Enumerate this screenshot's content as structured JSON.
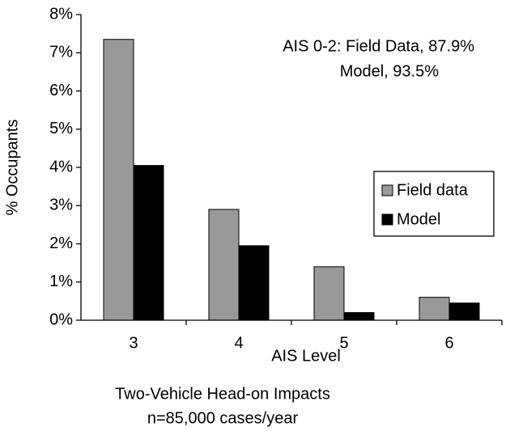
{
  "chart_data": {
    "type": "bar",
    "x_label": "AIS Level",
    "y_label": "% Occupants",
    "subtitle_lines": [
      "Two-Vehicle Head-on Impacts",
      "n=85,000 cases/year"
    ],
    "annotations": [
      "AIS 0-2: Field Data, 87.9%",
      "Model, 93.5%"
    ],
    "categories": [
      "3",
      "4",
      "5",
      "6"
    ],
    "series": [
      {
        "name": "Field data",
        "color": "#999999",
        "values": [
          7.35,
          2.9,
          1.4,
          0.6
        ]
      },
      {
        "name": "Model",
        "color": "#000000",
        "values": [
          4.05,
          1.95,
          0.2,
          0.45
        ]
      }
    ],
    "ylim": [
      0,
      8
    ],
    "yticks": [
      {
        "value": 0,
        "label": "0%"
      },
      {
        "value": 1,
        "label": "1%"
      },
      {
        "value": 2,
        "label": "2%"
      },
      {
        "value": 3,
        "label": "3%"
      },
      {
        "value": 4,
        "label": "4%"
      },
      {
        "value": 5,
        "label": "5%"
      },
      {
        "value": 6,
        "label": "6%"
      },
      {
        "value": 7,
        "label": "7%"
      },
      {
        "value": 8,
        "label": "8%"
      }
    ],
    "grid": false,
    "legend": "right"
  }
}
